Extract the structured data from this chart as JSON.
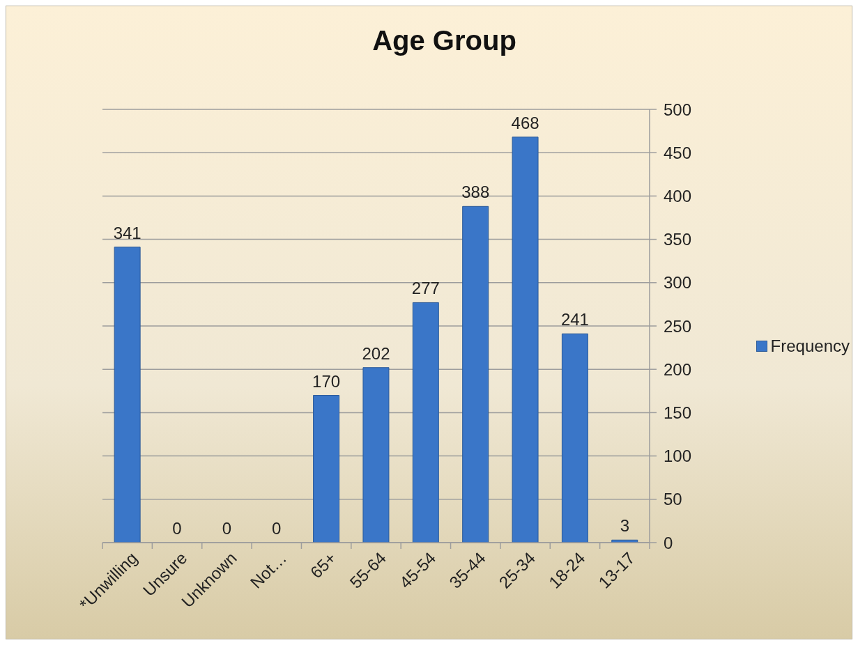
{
  "chart_data": {
    "type": "bar",
    "title": "Age Group",
    "categories": [
      "*Unwilling",
      "Unsure",
      "Unknown",
      "Not…",
      "65+",
      "55-64",
      "45-54",
      "35-44",
      "25-34",
      "18-24",
      "13-17"
    ],
    "series": [
      {
        "name": "Frequency",
        "color": "#3a76c8",
        "values": [
          341,
          0,
          0,
          0,
          170,
          202,
          277,
          388,
          468,
          241,
          3
        ]
      }
    ],
    "ylim": [
      0,
      500
    ],
    "yticks": [
      0,
      50,
      100,
      150,
      200,
      250,
      300,
      350,
      400,
      450,
      500
    ],
    "grid": "y",
    "legend": "right",
    "data_labels": true
  }
}
